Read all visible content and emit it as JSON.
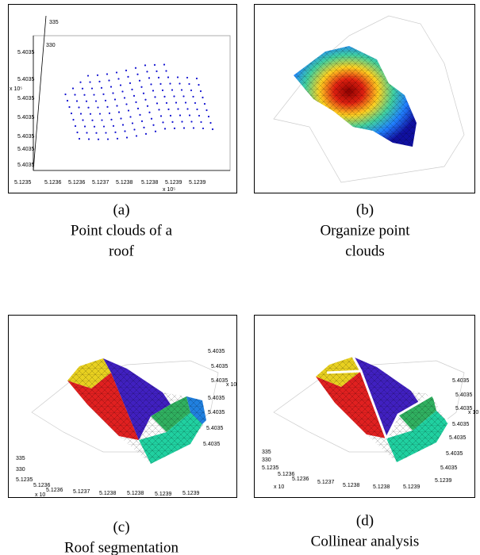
{
  "panels": [
    {
      "label": "(a)",
      "caption": [
        "Point clouds of a",
        "roof"
      ],
      "ticks": [
        "335",
        "330",
        "5.4035",
        "5.4035",
        "x 10⁵",
        "5.4035",
        "5.4035",
        "5.4035",
        "5.4035",
        "5.4035",
        "5.1235",
        "5.1236",
        "5.1236",
        "5.1237",
        "5.1238",
        "5.1238",
        "5.1239",
        "5.1239",
        "x 10⁵"
      ]
    },
    {
      "label": "(b)",
      "caption": [
        "Organize point",
        "clouds"
      ],
      "ticks": []
    },
    {
      "label": "(c)",
      "caption": [
        "Roof segmentation"
      ],
      "ticks": [
        "5.4035",
        "5.4035",
        "5.4035",
        "x 10",
        "5.4035",
        "5.4035",
        "5.4035",
        "5.4035",
        "335",
        "330",
        "5.1235",
        "5.1236",
        "5.1236",
        "x 10",
        "5.1237",
        "5.1238",
        "5.1238",
        "5.1239",
        "5.1239"
      ]
    },
    {
      "label": "(d)",
      "caption": [
        "Collinear analysis"
      ],
      "ticks": [
        "5.4035",
        "5.4035",
        "5.4035",
        "x 10",
        "5.4035",
        "5.4035",
        "5.4035",
        "5.4035",
        "335",
        "330",
        "5.1235",
        "5.1236",
        "5.1236",
        "x 10",
        "5.1237",
        "5.1238",
        "5.1238",
        "5.1239",
        "5.1239"
      ]
    }
  ]
}
